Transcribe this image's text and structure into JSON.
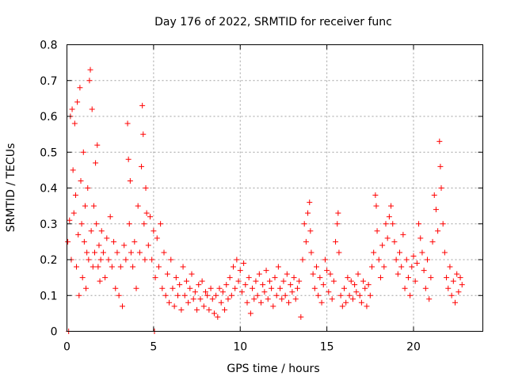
{
  "chart_data": {
    "type": "scatter",
    "title": "Day 176 of 2022, SRMTID for receiver func",
    "xlabel": "GPS time / hours",
    "ylabel": "SRMTID / TECUs",
    "xlim": [
      0,
      24
    ],
    "ylim": [
      0,
      0.8
    ],
    "xticks": [
      0,
      5,
      10,
      15,
      20
    ],
    "yticks": [
      0,
      0.1,
      0.2,
      0.3,
      0.4,
      0.5,
      0.6,
      0.7,
      0.8
    ],
    "xtick_labels": [
      "0",
      "5",
      "10",
      "15",
      "20"
    ],
    "ytick_labels": [
      "0",
      "0.1",
      "0.2",
      "0.3",
      "0.4",
      "0.5",
      "0.6",
      "0.7",
      "0.8"
    ],
    "grid": true,
    "marker": "plus",
    "colors": {
      "series": "#ff0000",
      "grid": "#a0a0a0",
      "axes": "#000000"
    },
    "series": [
      {
        "name": "SRMTID",
        "points": [
          [
            0.05,
            0.25
          ],
          [
            0.1,
            0.0
          ],
          [
            0.15,
            0.31
          ],
          [
            0.2,
            0.6
          ],
          [
            0.25,
            0.2
          ],
          [
            0.3,
            0.62
          ],
          [
            0.35,
            0.45
          ],
          [
            0.4,
            0.33
          ],
          [
            0.45,
            0.58
          ],
          [
            0.5,
            0.38
          ],
          [
            0.55,
            0.18
          ],
          [
            0.6,
            0.64
          ],
          [
            0.65,
            0.27
          ],
          [
            0.7,
            0.1
          ],
          [
            0.75,
            0.68
          ],
          [
            0.8,
            0.42
          ],
          [
            0.85,
            0.3
          ],
          [
            0.9,
            0.15
          ],
          [
            0.95,
            0.5
          ],
          [
            1.0,
            0.25
          ],
          [
            1.05,
            0.35
          ],
          [
            1.1,
            0.12
          ],
          [
            1.15,
            0.22
          ],
          [
            1.2,
            0.4
          ],
          [
            1.25,
            0.2
          ],
          [
            1.3,
            0.7
          ],
          [
            1.35,
            0.73
          ],
          [
            1.4,
            0.28
          ],
          [
            1.45,
            0.62
          ],
          [
            1.5,
            0.18
          ],
          [
            1.55,
            0.35
          ],
          [
            1.6,
            0.22
          ],
          [
            1.65,
            0.47
          ],
          [
            1.7,
            0.3
          ],
          [
            1.75,
            0.52
          ],
          [
            1.8,
            0.18
          ],
          [
            1.85,
            0.24
          ],
          [
            1.9,
            0.14
          ],
          [
            1.95,
            0.2
          ],
          [
            2.0,
            0.28
          ],
          [
            2.1,
            0.22
          ],
          [
            2.2,
            0.15
          ],
          [
            2.3,
            0.26
          ],
          [
            2.4,
            0.2
          ],
          [
            2.5,
            0.32
          ],
          [
            2.6,
            0.18
          ],
          [
            2.7,
            0.25
          ],
          [
            2.8,
            0.12
          ],
          [
            2.9,
            0.22
          ],
          [
            3.0,
            0.1
          ],
          [
            3.1,
            0.18
          ],
          [
            3.2,
            0.07
          ],
          [
            3.3,
            0.24
          ],
          [
            3.4,
            0.2
          ],
          [
            3.5,
            0.58
          ],
          [
            3.55,
            0.48
          ],
          [
            3.6,
            0.3
          ],
          [
            3.65,
            0.42
          ],
          [
            3.7,
            0.22
          ],
          [
            3.8,
            0.18
          ],
          [
            3.9,
            0.25
          ],
          [
            4.0,
            0.12
          ],
          [
            4.1,
            0.35
          ],
          [
            4.2,
            0.22
          ],
          [
            4.3,
            0.46
          ],
          [
            4.35,
            0.63
          ],
          [
            4.4,
            0.55
          ],
          [
            4.45,
            0.3
          ],
          [
            4.5,
            0.2
          ],
          [
            4.55,
            0.4
          ],
          [
            4.6,
            0.33
          ],
          [
            4.7,
            0.24
          ],
          [
            4.8,
            0.32
          ],
          [
            4.9,
            0.2
          ],
          [
            5.0,
            0.28
          ],
          [
            5.05,
            0.0
          ],
          [
            5.1,
            0.15
          ],
          [
            5.2,
            0.26
          ],
          [
            5.3,
            0.18
          ],
          [
            5.4,
            0.3
          ],
          [
            5.5,
            0.12
          ],
          [
            5.6,
            0.22
          ],
          [
            5.7,
            0.1
          ],
          [
            5.8,
            0.16
          ],
          [
            5.9,
            0.08
          ],
          [
            6.0,
            0.2
          ],
          [
            6.1,
            0.12
          ],
          [
            6.2,
            0.07
          ],
          [
            6.3,
            0.15
          ],
          [
            6.4,
            0.1
          ],
          [
            6.5,
            0.13
          ],
          [
            6.6,
            0.06
          ],
          [
            6.7,
            0.18
          ],
          [
            6.8,
            0.1
          ],
          [
            6.9,
            0.14
          ],
          [
            7.0,
            0.08
          ],
          [
            7.1,
            0.12
          ],
          [
            7.2,
            0.16
          ],
          [
            7.3,
            0.09
          ],
          [
            7.4,
            0.11
          ],
          [
            7.5,
            0.06
          ],
          [
            7.6,
            0.13
          ],
          [
            7.7,
            0.09
          ],
          [
            7.8,
            0.14
          ],
          [
            7.9,
            0.07
          ],
          [
            8.0,
            0.11
          ],
          [
            8.1,
            0.1
          ],
          [
            8.2,
            0.06
          ],
          [
            8.3,
            0.12
          ],
          [
            8.4,
            0.09
          ],
          [
            8.5,
            0.05
          ],
          [
            8.6,
            0.1
          ],
          [
            8.7,
            0.04
          ],
          [
            8.8,
            0.12
          ],
          [
            8.9,
            0.08
          ],
          [
            9.0,
            0.11
          ],
          [
            9.1,
            0.06
          ],
          [
            9.2,
            0.13
          ],
          [
            9.3,
            0.09
          ],
          [
            9.4,
            0.15
          ],
          [
            9.5,
            0.1
          ],
          [
            9.6,
            0.18
          ],
          [
            9.7,
            0.12
          ],
          [
            9.8,
            0.2
          ],
          [
            9.9,
            0.14
          ],
          [
            10.0,
            0.17
          ],
          [
            10.1,
            0.11
          ],
          [
            10.2,
            0.19
          ],
          [
            10.3,
            0.13
          ],
          [
            10.4,
            0.08
          ],
          [
            10.5,
            0.15
          ],
          [
            10.6,
            0.05
          ],
          [
            10.7,
            0.12
          ],
          [
            10.8,
            0.09
          ],
          [
            10.9,
            0.14
          ],
          [
            11.0,
            0.1
          ],
          [
            11.1,
            0.16
          ],
          [
            11.2,
            0.08
          ],
          [
            11.3,
            0.13
          ],
          [
            11.4,
            0.11
          ],
          [
            11.5,
            0.17
          ],
          [
            11.6,
            0.09
          ],
          [
            11.7,
            0.14
          ],
          [
            11.8,
            0.12
          ],
          [
            11.9,
            0.07
          ],
          [
            12.0,
            0.15
          ],
          [
            12.1,
            0.1
          ],
          [
            12.2,
            0.18
          ],
          [
            12.3,
            0.12
          ],
          [
            12.4,
            0.09
          ],
          [
            12.5,
            0.14
          ],
          [
            12.6,
            0.1
          ],
          [
            12.7,
            0.16
          ],
          [
            12.8,
            0.08
          ],
          [
            12.9,
            0.13
          ],
          [
            13.0,
            0.11
          ],
          [
            13.1,
            0.15
          ],
          [
            13.2,
            0.09
          ],
          [
            13.3,
            0.12
          ],
          [
            13.4,
            0.14
          ],
          [
            13.5,
            0.04
          ],
          [
            13.6,
            0.2
          ],
          [
            13.7,
            0.3
          ],
          [
            13.8,
            0.25
          ],
          [
            13.9,
            0.33
          ],
          [
            14.0,
            0.36
          ],
          [
            14.05,
            0.28
          ],
          [
            14.1,
            0.22
          ],
          [
            14.2,
            0.16
          ],
          [
            14.3,
            0.12
          ],
          [
            14.4,
            0.18
          ],
          [
            14.5,
            0.1
          ],
          [
            14.6,
            0.15
          ],
          [
            14.7,
            0.08
          ],
          [
            14.8,
            0.13
          ],
          [
            14.9,
            0.2
          ],
          [
            15.0,
            0.17
          ],
          [
            15.1,
            0.11
          ],
          [
            15.2,
            0.16
          ],
          [
            15.3,
            0.09
          ],
          [
            15.4,
            0.14
          ],
          [
            15.5,
            0.25
          ],
          [
            15.6,
            0.3
          ],
          [
            15.65,
            0.33
          ],
          [
            15.7,
            0.22
          ],
          [
            15.8,
            0.1
          ],
          [
            15.9,
            0.07
          ],
          [
            16.0,
            0.12
          ],
          [
            16.1,
            0.08
          ],
          [
            16.2,
            0.15
          ],
          [
            16.3,
            0.1
          ],
          [
            16.4,
            0.14
          ],
          [
            16.5,
            0.09
          ],
          [
            16.6,
            0.13
          ],
          [
            16.7,
            0.11
          ],
          [
            16.8,
            0.16
          ],
          [
            16.9,
            0.1
          ],
          [
            17.0,
            0.08
          ],
          [
            17.1,
            0.14
          ],
          [
            17.2,
            0.12
          ],
          [
            17.3,
            0.07
          ],
          [
            17.4,
            0.13
          ],
          [
            17.5,
            0.1
          ],
          [
            17.6,
            0.18
          ],
          [
            17.7,
            0.22
          ],
          [
            17.8,
            0.38
          ],
          [
            17.85,
            0.35
          ],
          [
            17.9,
            0.28
          ],
          [
            18.0,
            0.2
          ],
          [
            18.1,
            0.15
          ],
          [
            18.2,
            0.24
          ],
          [
            18.3,
            0.18
          ],
          [
            18.4,
            0.3
          ],
          [
            18.5,
            0.26
          ],
          [
            18.6,
            0.32
          ],
          [
            18.7,
            0.35
          ],
          [
            18.8,
            0.3
          ],
          [
            18.9,
            0.25
          ],
          [
            19.0,
            0.2
          ],
          [
            19.1,
            0.16
          ],
          [
            19.2,
            0.22
          ],
          [
            19.3,
            0.18
          ],
          [
            19.4,
            0.27
          ],
          [
            19.5,
            0.12
          ],
          [
            19.6,
            0.2
          ],
          [
            19.7,
            0.15
          ],
          [
            19.8,
            0.1
          ],
          [
            19.9,
            0.18
          ],
          [
            20.0,
            0.21
          ],
          [
            20.1,
            0.14
          ],
          [
            20.2,
            0.19
          ],
          [
            20.3,
            0.3
          ],
          [
            20.4,
            0.26
          ],
          [
            20.5,
            0.22
          ],
          [
            20.6,
            0.17
          ],
          [
            20.7,
            0.12
          ],
          [
            20.8,
            0.2
          ],
          [
            20.9,
            0.09
          ],
          [
            21.0,
            0.15
          ],
          [
            21.1,
            0.25
          ],
          [
            21.2,
            0.38
          ],
          [
            21.3,
            0.34
          ],
          [
            21.4,
            0.28
          ],
          [
            21.5,
            0.53
          ],
          [
            21.55,
            0.46
          ],
          [
            21.6,
            0.4
          ],
          [
            21.7,
            0.3
          ],
          [
            21.8,
            0.22
          ],
          [
            21.9,
            0.15
          ],
          [
            22.0,
            0.12
          ],
          [
            22.1,
            0.18
          ],
          [
            22.2,
            0.1
          ],
          [
            22.3,
            0.14
          ],
          [
            22.4,
            0.08
          ],
          [
            22.5,
            0.16
          ],
          [
            22.6,
            0.11
          ],
          [
            22.7,
            0.15
          ],
          [
            22.8,
            0.13
          ]
        ]
      }
    ]
  }
}
